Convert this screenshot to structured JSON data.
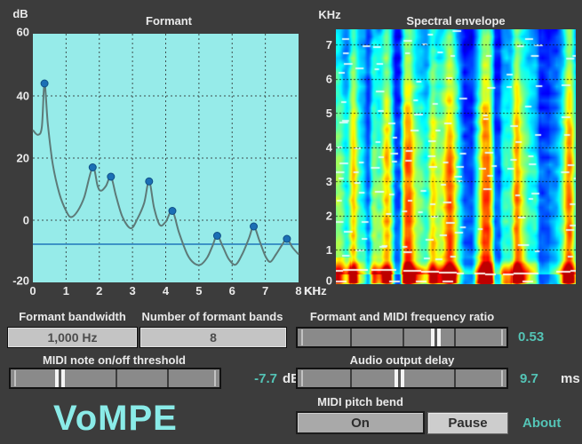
{
  "window": {
    "background": "#3c3c3c"
  },
  "chart_data": [
    {
      "type": "line",
      "title": "Formant",
      "y_axis_unit": "dB",
      "x_axis_unit": "KHz",
      "xlim": [
        0,
        8
      ],
      "ylim": [
        -20,
        60
      ],
      "x_ticks": [
        0,
        1,
        2,
        3,
        4,
        5,
        6,
        7,
        8
      ],
      "y_ticks": [
        60,
        40,
        20,
        0,
        -20
      ],
      "grid": true,
      "plot_bg": "#96ebe9",
      "grid_color": "#3e4f4f",
      "curve_color": "#5d7a78",
      "marker_color": "#1b6fb5",
      "marker_edge": "#0f4f86",
      "threshold_line": {
        "value_db": -7.7,
        "color": "#3d93c6"
      },
      "formant_peaks": [
        [
          0.35,
          44
        ],
        [
          1.8,
          17
        ],
        [
          2.35,
          14
        ],
        [
          3.5,
          12.5
        ],
        [
          4.2,
          3
        ],
        [
          5.55,
          -5
        ],
        [
          6.65,
          -2
        ],
        [
          7.65,
          -6
        ]
      ],
      "curve": [
        [
          0,
          29
        ],
        [
          0.15,
          27.5
        ],
        [
          0.27,
          30
        ],
        [
          0.35,
          44
        ],
        [
          0.45,
          31
        ],
        [
          0.6,
          18
        ],
        [
          0.8,
          8.5
        ],
        [
          1.0,
          3
        ],
        [
          1.15,
          1
        ],
        [
          1.35,
          3
        ],
        [
          1.55,
          7.5
        ],
        [
          1.8,
          17
        ],
        [
          1.95,
          11
        ],
        [
          2.05,
          9.5
        ],
        [
          2.2,
          11
        ],
        [
          2.35,
          14
        ],
        [
          2.5,
          8
        ],
        [
          2.7,
          1
        ],
        [
          2.95,
          -2.6
        ],
        [
          3.15,
          0.5
        ],
        [
          3.35,
          5.5
        ],
        [
          3.5,
          12.5
        ],
        [
          3.65,
          4
        ],
        [
          3.82,
          -1.5
        ],
        [
          4.0,
          -0.5
        ],
        [
          4.2,
          3
        ],
        [
          4.4,
          -4
        ],
        [
          4.65,
          -11
        ],
        [
          4.85,
          -13.8
        ],
        [
          5.05,
          -14.3
        ],
        [
          5.25,
          -12
        ],
        [
          5.4,
          -8.5
        ],
        [
          5.55,
          -5
        ],
        [
          5.72,
          -8.5
        ],
        [
          5.9,
          -12.5
        ],
        [
          6.1,
          -14.3
        ],
        [
          6.3,
          -11
        ],
        [
          6.5,
          -6
        ],
        [
          6.65,
          -2
        ],
        [
          6.82,
          -6.5
        ],
        [
          7.0,
          -11.5
        ],
        [
          7.15,
          -13.4
        ],
        [
          7.32,
          -11
        ],
        [
          7.5,
          -8
        ],
        [
          7.65,
          -6
        ],
        [
          7.82,
          -8.8
        ],
        [
          8,
          -11
        ]
      ]
    },
    {
      "type": "heatmap",
      "title": "Spectral envelope",
      "y_axis_unit_top": "KHz",
      "y_axis_unit_bottom": "KHz",
      "y_ticks": [
        7,
        6,
        5,
        4,
        3,
        2,
        1,
        0
      ],
      "ylim": [
        0,
        7.45
      ],
      "colormap": "jet",
      "grid": true,
      "seed": 11,
      "bright_columns": [
        0.07,
        0.21,
        0.3,
        0.4,
        0.47,
        0.62,
        0.75,
        0.97
      ],
      "dark_columns": [
        0.135,
        0.26,
        0.56,
        0.67,
        0.86,
        0.91
      ],
      "pitch_trace_khz": 0.33,
      "harmonic_traces_khz": [
        0.9,
        1.4,
        1.9,
        2.45,
        2.9,
        3.4,
        3.65,
        4.1,
        4.55,
        5.0,
        5.45,
        6.0,
        6.5,
        6.9,
        7.2
      ]
    }
  ],
  "controls": {
    "formant_bandwidth": {
      "label": "Formant bandwidth",
      "value": "1,000 Hz"
    },
    "formant_bands": {
      "label": "Number of formant bands",
      "value": "8"
    },
    "midi_threshold": {
      "label": "MIDI note on/off threshold",
      "value": "-7.7",
      "unit": "dB",
      "slider_pos": 0.24
    },
    "freq_ratio": {
      "label": "Formant and MIDI frequency ratio",
      "value": "0.53",
      "slider_pos": 0.665
    },
    "audio_delay": {
      "label": "Audio output delay",
      "value": "9.7",
      "unit": "ms",
      "slider_pos": 0.49
    },
    "midi_pitch_bend": {
      "label": "MIDI pitch bend",
      "on_label": "On",
      "pause_label": "Pause"
    }
  },
  "footer": {
    "app_name": "VoMPE",
    "about_label": "About"
  },
  "colors": {
    "accent_teal": "#54c4b6",
    "app_name_color": "#8aebe8",
    "label_color": "#e9e9e9"
  }
}
